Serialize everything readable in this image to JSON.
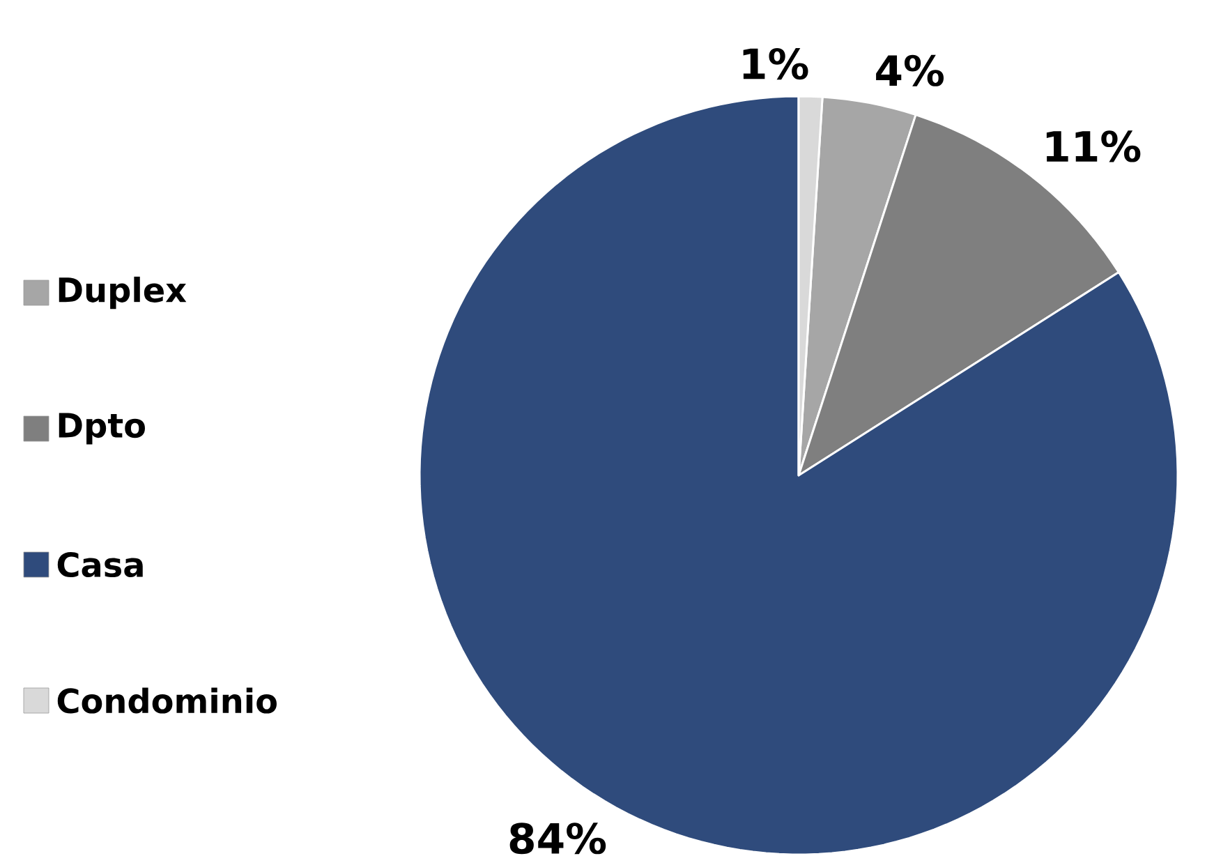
{
  "chart_data": {
    "type": "pie",
    "categories": [
      "Duplex",
      "Dpto",
      "Casa",
      "Condominio"
    ],
    "values": [
      4,
      11,
      84,
      1
    ],
    "colors": [
      "#a6a6a6",
      "#7f7f7f",
      "#2f4b7c",
      "#d9d9d9"
    ],
    "value_labels": [
      "4%",
      "11%",
      "84%",
      "1%"
    ],
    "legend": "left"
  }
}
